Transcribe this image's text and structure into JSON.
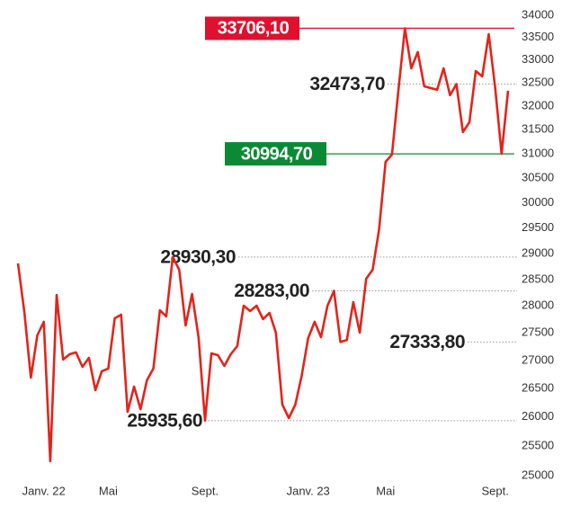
{
  "chart_data": {
    "type": "line",
    "log_scale": true,
    "color": "#e2241b",
    "categories": [
      null,
      null,
      null,
      null,
      "Janv. 22",
      null,
      null,
      null,
      null,
      null,
      null,
      null,
      null,
      null,
      "Mai",
      null,
      null,
      null,
      null,
      null,
      null,
      null,
      null,
      null,
      null,
      null,
      null,
      null,
      null,
      "Sept.",
      null,
      null,
      null,
      null,
      null,
      null,
      null,
      null,
      null,
      null,
      null,
      null,
      null,
      null,
      null,
      "Janv. 23",
      null,
      null,
      null,
      null,
      null,
      null,
      null,
      null,
      null,
      null,
      null,
      "Mai",
      null,
      null,
      null,
      null,
      null,
      null,
      null,
      null,
      null,
      null,
      null,
      null,
      null,
      null,
      null,
      null,
      "Sept.",
      null,
      null
    ],
    "values": [
      28808,
      27870,
      26692,
      27455,
      27705,
      25241,
      28208,
      27015,
      27112,
      27145,
      26885,
      27047,
      26468,
      26805,
      26853,
      27770,
      27837,
      26088,
      26532,
      26135,
      26645,
      26853,
      27920,
      27805,
      28930.3,
      28685,
      27638,
      28225,
      27422,
      25935.6,
      27128,
      27095,
      26900,
      27112,
      27258,
      28005,
      27905,
      28005,
      27755,
      27870,
      27505,
      26215,
      25980,
      26215,
      26725,
      27405,
      27705,
      27422,
      28005,
      28283,
      27333.8,
      27372,
      28073,
      27505,
      28513,
      28685,
      29473,
      30830,
      30980,
      32348,
      33706.1,
      32817,
      33175,
      32425,
      32388,
      32348,
      32817,
      32232,
      32473.7,
      31448,
      31655,
      32757,
      32640,
      33575,
      32388,
      30994.7,
      32330
    ],
    "ylim": [
      25000,
      34000
    ],
    "yticks": [
      25000,
      25500,
      26000,
      26500,
      27000,
      27500,
      28000,
      28500,
      29000,
      29500,
      30000,
      30500,
      31000,
      31500,
      32000,
      32500,
      33000,
      33500,
      34000
    ],
    "annotations": [
      {
        "value": 33706.1,
        "label": "33706,10",
        "color": "#e0102f"
      },
      {
        "value": 32473.7,
        "label": "32473,70"
      },
      {
        "value": 30994.7,
        "label": "30994,70",
        "color": "#0b8a34"
      },
      {
        "value": 28930.3,
        "label": "28930,30"
      },
      {
        "value": 28283,
        "label": "28283,00"
      },
      {
        "value": 27333.8,
        "label": "27333,80"
      },
      {
        "value": 25935.6,
        "label": "25935,60"
      }
    ]
  }
}
